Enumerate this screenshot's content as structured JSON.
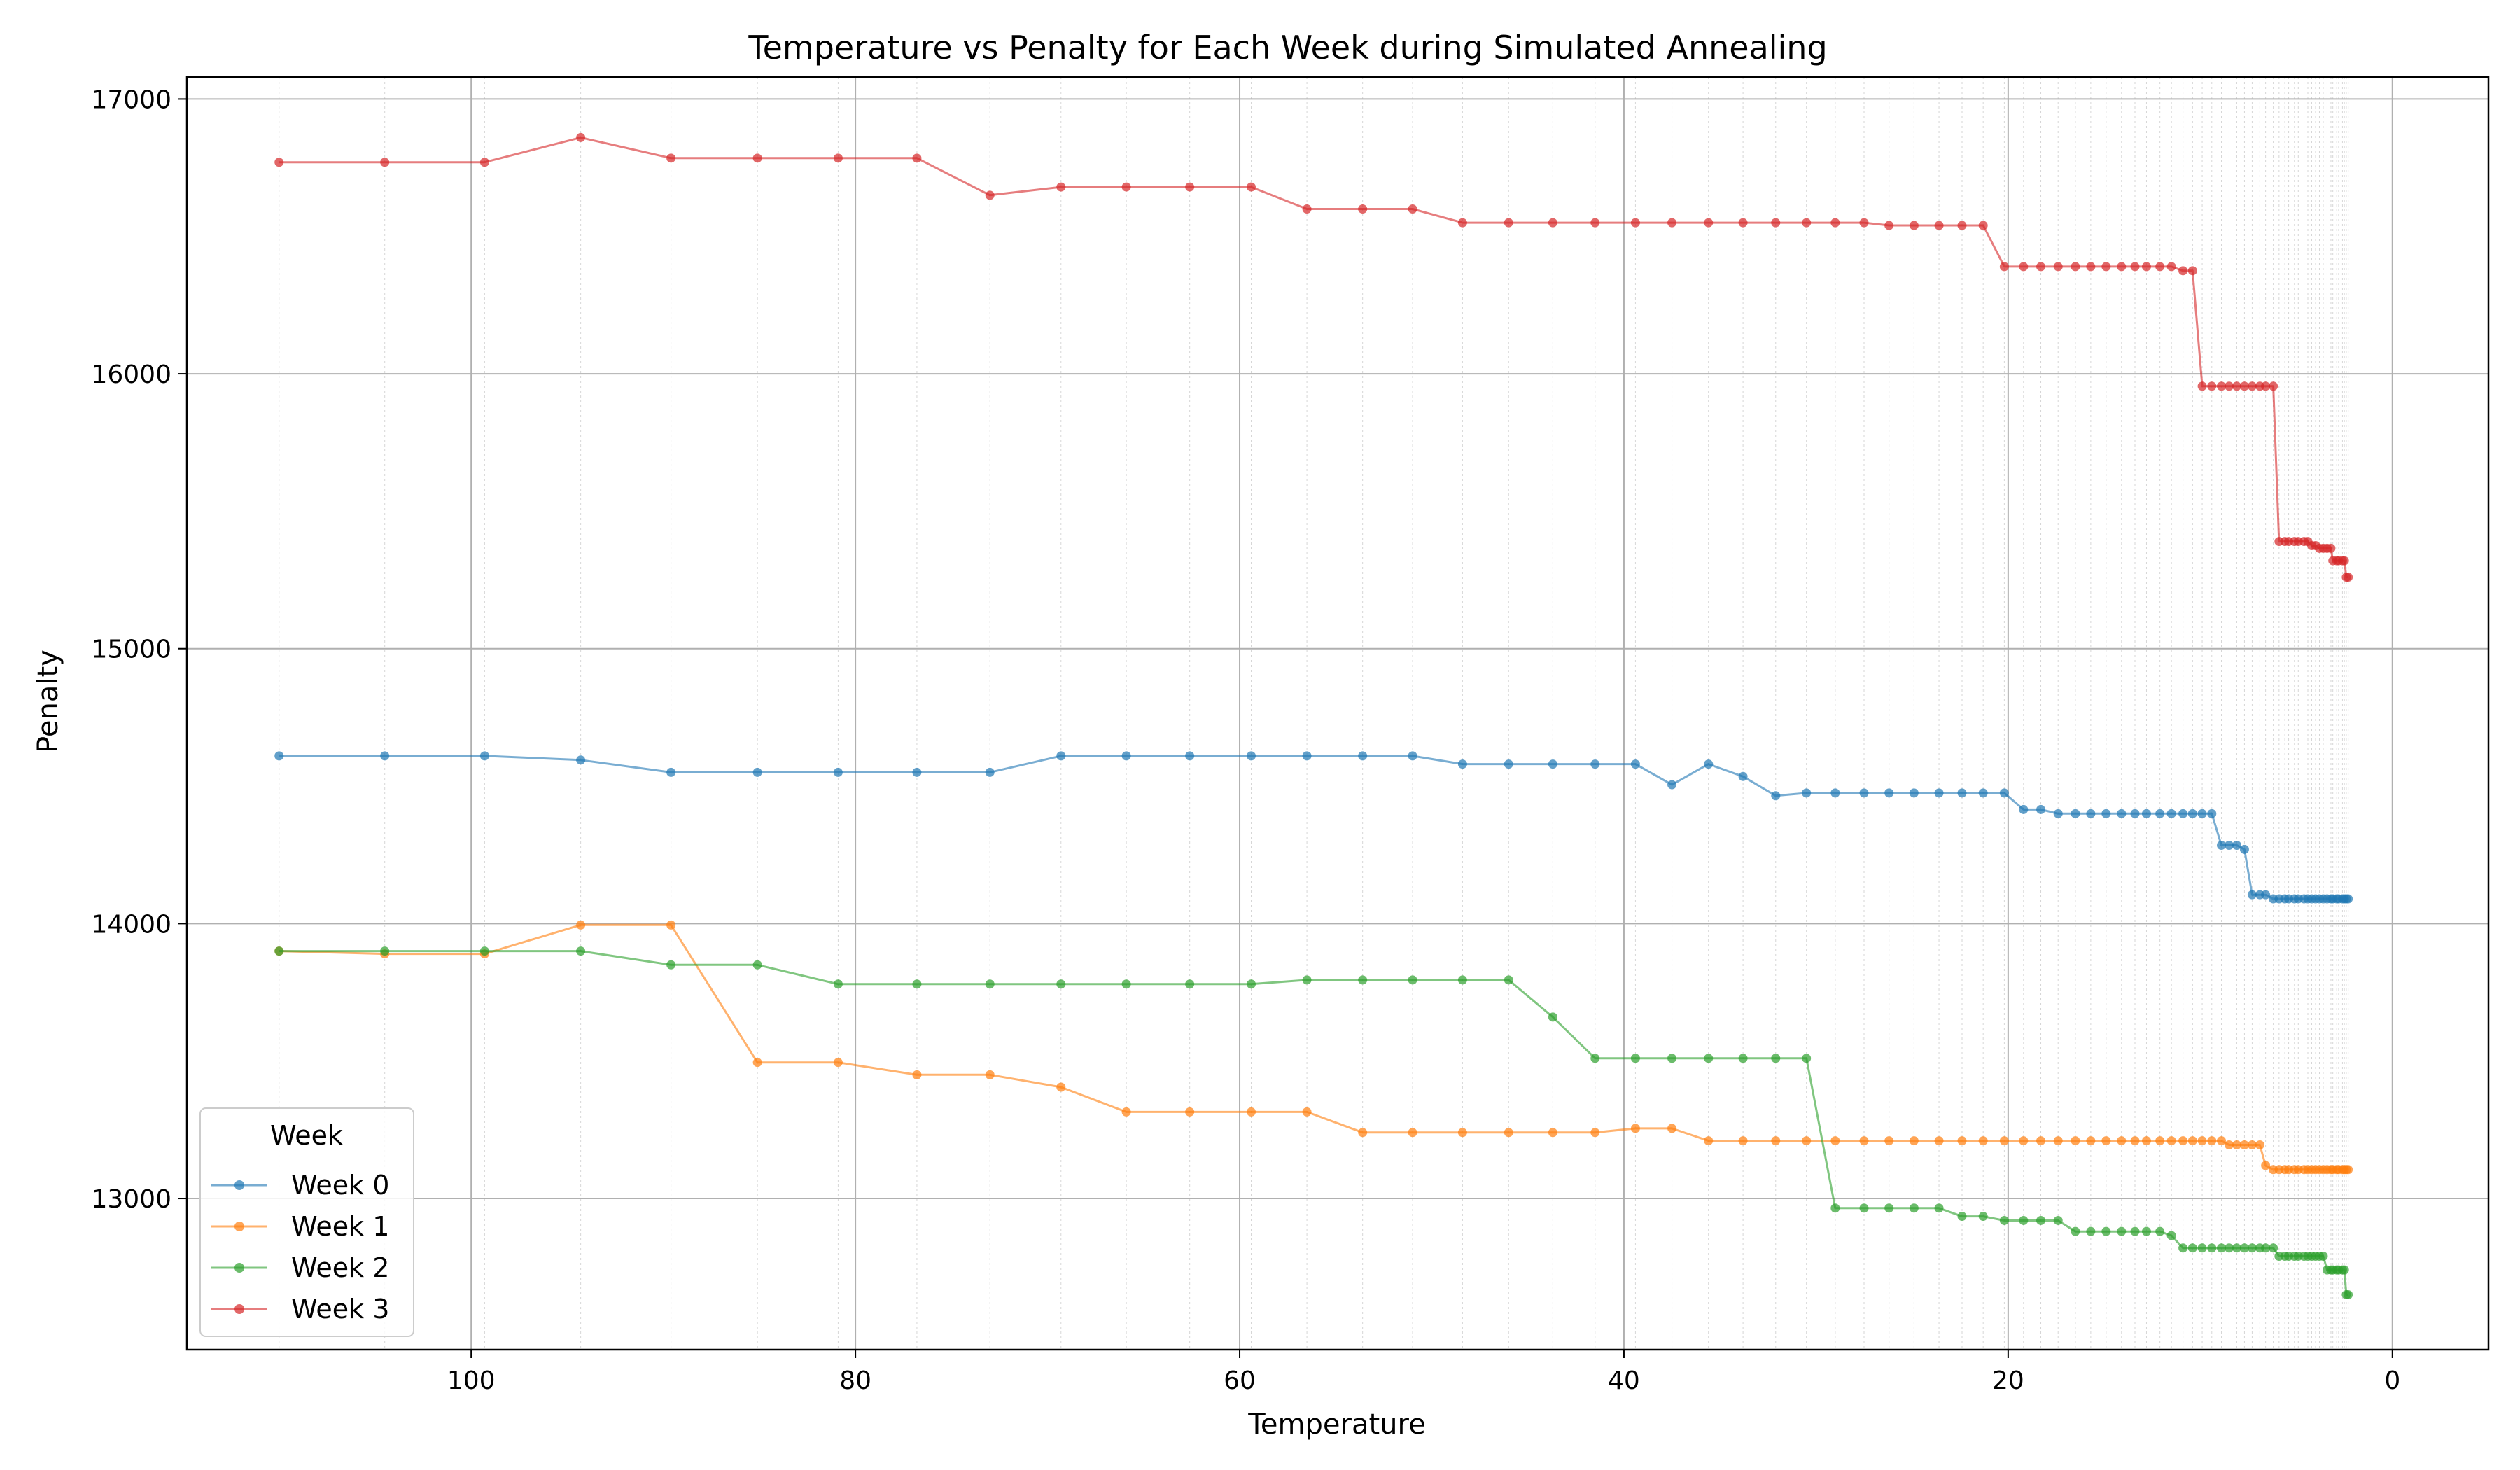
{
  "chart_data": {
    "type": "line",
    "title": "Temperature vs Penalty for Each Week during Simulated Annealing",
    "xlabel": "Temperature",
    "ylabel": "Penalty",
    "xlim": [
      114.8,
      -5.0
    ],
    "ylim": [
      12450,
      17080
    ],
    "x_inverted": true,
    "xticks": [
      100,
      80,
      60,
      40,
      20,
      0
    ],
    "yticks": [
      13000,
      14000,
      15000,
      16000,
      17000
    ],
    "grid": true,
    "legend": {
      "title": "Week",
      "placement": "lower-left"
    },
    "temperatures": [
      110.0,
      104.5,
      99.3,
      94.3,
      89.6,
      85.1,
      80.9,
      76.8,
      73.0,
      69.3,
      65.9,
      62.6,
      59.4,
      56.5,
      53.6,
      51.0,
      48.4,
      46.0,
      43.7,
      41.5,
      39.4,
      37.5,
      35.6,
      33.8,
      32.1,
      30.5,
      29.0,
      27.5,
      26.2,
      24.9,
      23.6,
      22.4,
      21.3,
      20.2,
      19.2,
      18.3,
      17.4,
      16.5,
      15.7,
      14.9,
      14.1,
      13.4,
      12.8,
      12.1,
      11.5,
      10.9,
      10.4,
      9.9,
      9.4,
      8.9,
      8.5,
      8.1,
      7.7,
      7.3,
      6.9,
      6.6,
      6.2,
      5.9,
      5.6,
      5.4,
      5.1,
      4.9,
      4.6,
      4.4,
      4.2,
      4.0,
      3.8,
      3.6,
      3.4,
      3.2,
      3.1,
      2.9,
      2.8,
      2.6,
      2.5,
      2.4,
      2.3
    ],
    "series": [
      {
        "name": "Week 0",
        "color": "#1f77b4",
        "values": [
          14610,
          14610,
          14610,
          14595,
          14550,
          14550,
          14550,
          14550,
          14550,
          14610,
          14610,
          14610,
          14610,
          14610,
          14610,
          14610,
          14580,
          14580,
          14580,
          14580,
          14580,
          14505,
          14580,
          14535,
          14465,
          14475,
          14475,
          14475,
          14475,
          14475,
          14475,
          14475,
          14475,
          14475,
          14415,
          14415,
          14400,
          14400,
          14400,
          14400,
          14400,
          14400,
          14400,
          14400,
          14400,
          14400,
          14400,
          14400,
          14400,
          14285,
          14285,
          14285,
          14270,
          14105,
          14105,
          14105,
          14090,
          14090,
          14090,
          14090,
          14090,
          14090,
          14090,
          14090,
          14090,
          14090,
          14090,
          14090,
          14090,
          14090,
          14090,
          14090,
          14090,
          14090,
          14090,
          14090,
          14090
        ]
      },
      {
        "name": "Week 1",
        "color": "#ff7f0e",
        "values": [
          13900,
          13890,
          13890,
          13995,
          13995,
          13495,
          13495,
          13450,
          13450,
          13405,
          13315,
          13315,
          13315,
          13315,
          13240,
          13240,
          13240,
          13240,
          13240,
          13240,
          13255,
          13255,
          13210,
          13210,
          13210,
          13210,
          13210,
          13210,
          13210,
          13210,
          13210,
          13210,
          13210,
          13210,
          13210,
          13210,
          13210,
          13210,
          13210,
          13210,
          13210,
          13210,
          13210,
          13210,
          13210,
          13210,
          13210,
          13210,
          13210,
          13210,
          13195,
          13195,
          13195,
          13195,
          13195,
          13120,
          13105,
          13105,
          13105,
          13105,
          13105,
          13105,
          13105,
          13105,
          13105,
          13105,
          13105,
          13105,
          13105,
          13105,
          13105,
          13105,
          13105,
          13105,
          13105,
          13105,
          13105
        ]
      },
      {
        "name": "Week 2",
        "color": "#2ca02c",
        "values": [
          13900,
          13900,
          13900,
          13900,
          13850,
          13850,
          13780,
          13780,
          13780,
          13780,
          13780,
          13780,
          13780,
          13795,
          13795,
          13795,
          13795,
          13795,
          13660,
          13510,
          13510,
          13510,
          13510,
          13510,
          13510,
          13510,
          12965,
          12965,
          12965,
          12965,
          12965,
          12935,
          12935,
          12920,
          12920,
          12920,
          12920,
          12880,
          12880,
          12880,
          12880,
          12880,
          12880,
          12880,
          12865,
          12820,
          12820,
          12820,
          12820,
          12820,
          12820,
          12820,
          12820,
          12820,
          12820,
          12820,
          12820,
          12790,
          12790,
          12790,
          12790,
          12790,
          12790,
          12790,
          12790,
          12790,
          12790,
          12790,
          12740,
          12740,
          12740,
          12740,
          12740,
          12740,
          12740,
          12650,
          12650
        ]
      },
      {
        "name": "Week 3",
        "color": "#d62728",
        "values": [
          16770,
          16770,
          16770,
          16860,
          16785,
          16785,
          16785,
          16785,
          16650,
          16680,
          16680,
          16680,
          16680,
          16600,
          16600,
          16600,
          16550,
          16550,
          16550,
          16550,
          16550,
          16550,
          16550,
          16550,
          16550,
          16550,
          16550,
          16550,
          16540,
          16540,
          16540,
          16540,
          16540,
          16390,
          16390,
          16390,
          16390,
          16390,
          16390,
          16390,
          16390,
          16390,
          16390,
          16390,
          16390,
          16375,
          16375,
          15955,
          15955,
          15955,
          15955,
          15955,
          15955,
          15955,
          15955,
          15955,
          15955,
          15390,
          15390,
          15390,
          15390,
          15390,
          15390,
          15390,
          15375,
          15375,
          15365,
          15365,
          15365,
          15365,
          15320,
          15320,
          15320,
          15320,
          15320,
          15260,
          15260
        ]
      }
    ]
  }
}
